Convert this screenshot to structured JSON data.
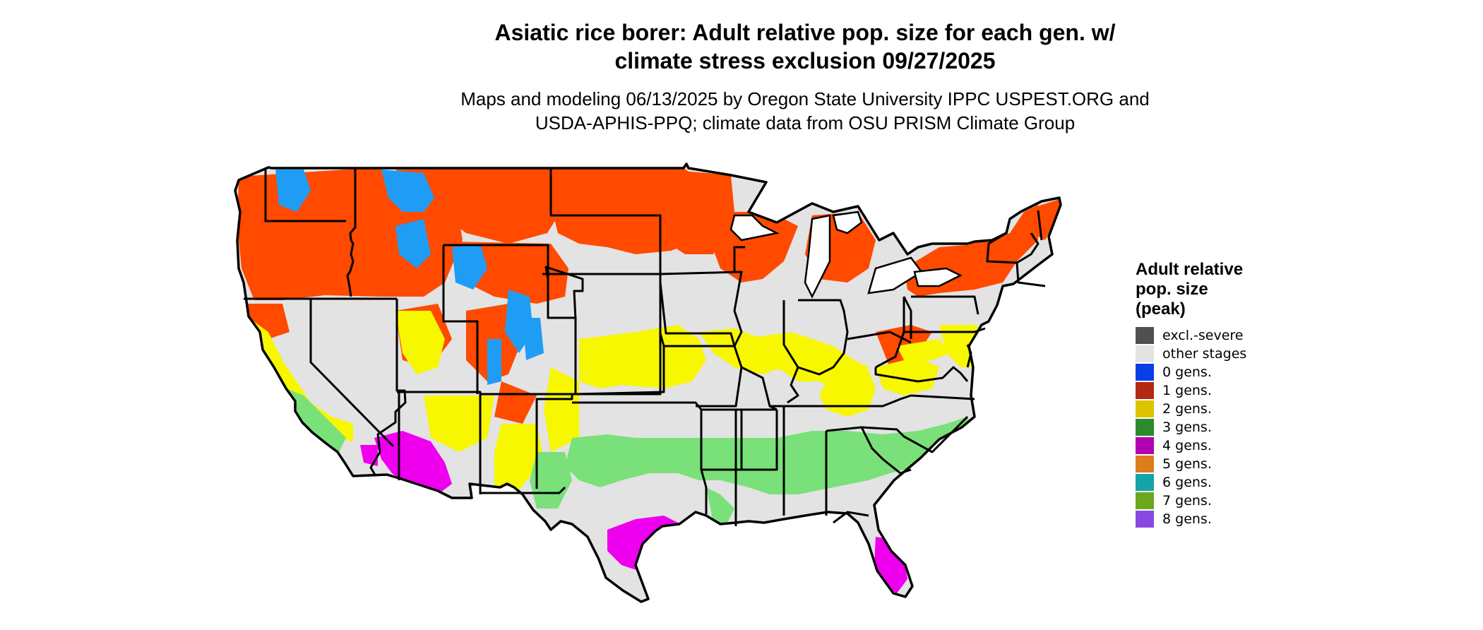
{
  "title_lines": [
    "Asiatic rice borer: Adult relative pop. size for each gen. w/",
    "climate stress exclusion 09/27/2025"
  ],
  "subtitle_lines": [
    "Maps and modeling 06/13/2025 by Oregon State University IPPC USPEST.ORG and",
    "USDA-APHIS-PPQ; climate data from OSU PRISM Climate Group"
  ],
  "map": {
    "region": "Contiguous United States",
    "background_color": "#e3e3e3",
    "border_color": "#000000"
  },
  "legend": {
    "title_lines": [
      "Adult relative",
      "pop. size",
      "(peak)"
    ],
    "items": [
      {
        "label": "excl.-severe",
        "color": "#505050"
      },
      {
        "label": "other stages",
        "color": "#e3e3e3"
      },
      {
        "label": "0 gens.",
        "color": "#0a3ee6"
      },
      {
        "label": "1 gens.",
        "color": "#b22a12"
      },
      {
        "label": "2 gens.",
        "color": "#dcc400"
      },
      {
        "label": "3 gens.",
        "color": "#2b8a2b"
      },
      {
        "label": "4 gens.",
        "color": "#b000b0"
      },
      {
        "label": "5 gens.",
        "color": "#dd7c1e"
      },
      {
        "label": "6 gens.",
        "color": "#14a3a8"
      },
      {
        "label": "7 gens.",
        "color": "#6aa81e"
      },
      {
        "label": "8 gens.",
        "color": "#8a48e0"
      }
    ]
  },
  "map_colors": {
    "one_gen": "#ff4a00",
    "zero_gen": "#1f9df5",
    "two_gen": "#f7f700",
    "three_gen": "#7ae07a",
    "four_gen": "#ee00ee",
    "five_gen": "#f08020"
  }
}
